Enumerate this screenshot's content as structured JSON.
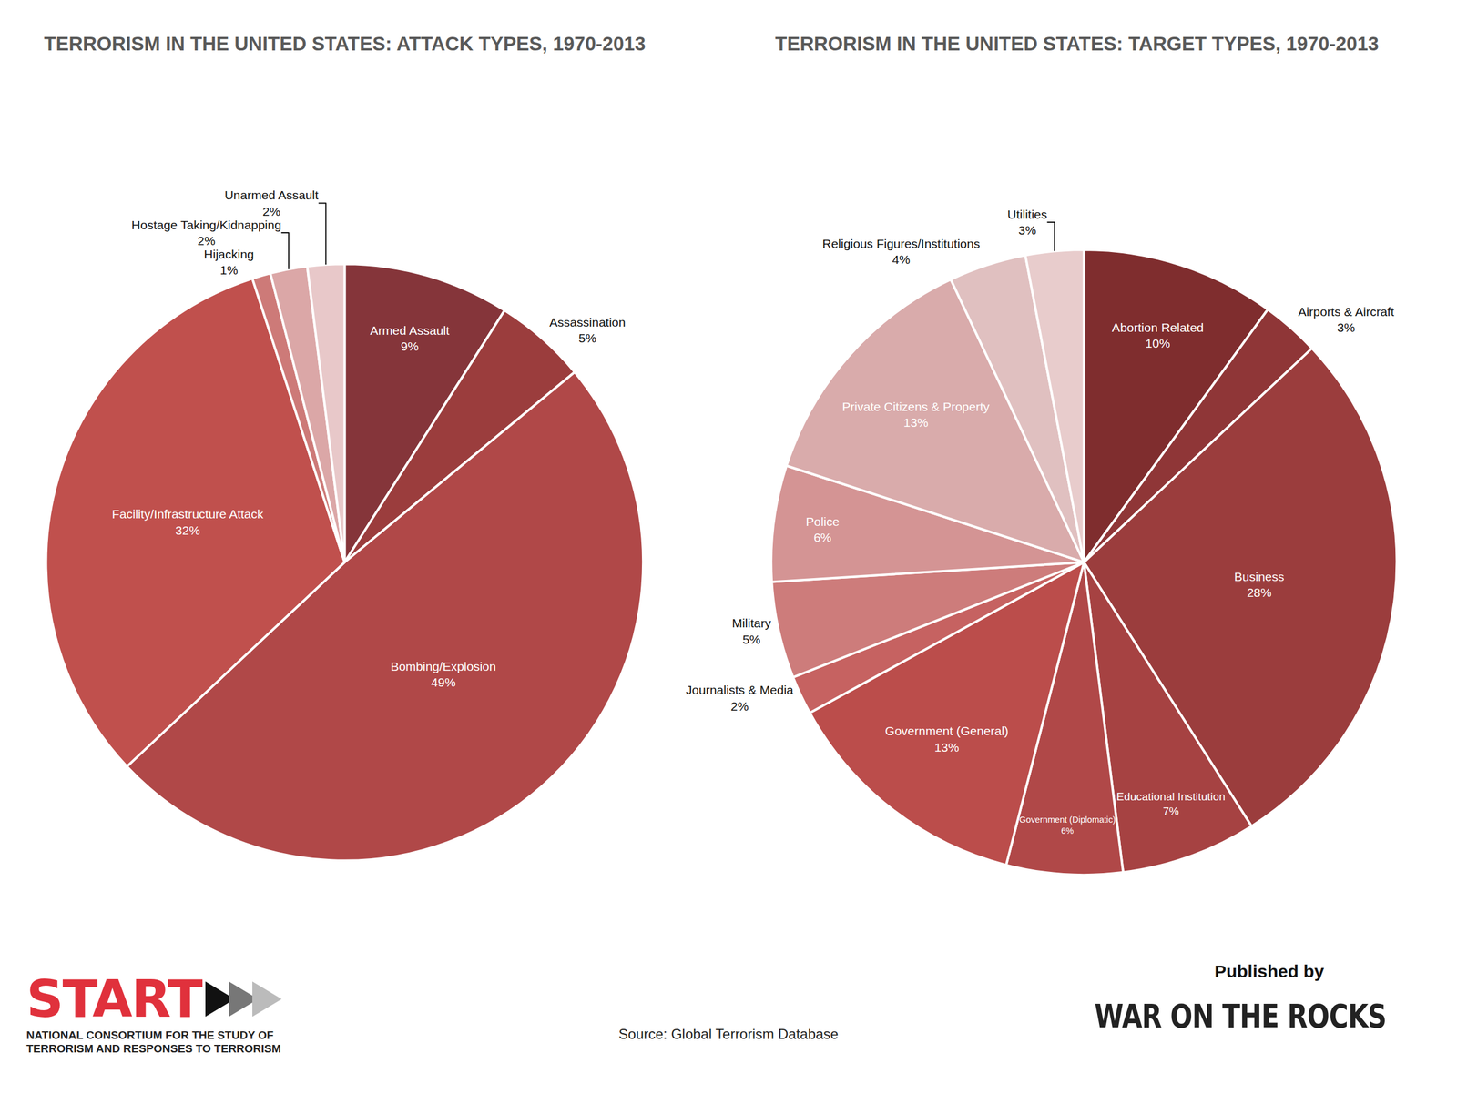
{
  "chart_data": [
    {
      "type": "pie",
      "title": "TERRORISM IN THE UNITED STATES: ATTACK TYPES, 1970-2013",
      "categories": [
        "Armed Assault",
        "Assassination",
        "Bombing/Explosion",
        "Facility/Infrastructure Attack",
        "Hijacking",
        "Hostage Taking/Kidnapping",
        "Unarmed Assault"
      ],
      "values": [
        9,
        5,
        49,
        32,
        1,
        2,
        2
      ],
      "value_labels": [
        "9%",
        "5%",
        "49%",
        "32%",
        "1%",
        "2%",
        "2%"
      ],
      "colors": [
        "#85353a",
        "#9b3d3d",
        "#b04848",
        "#c0504d",
        "#cd7a78",
        "#dba7a7",
        "#e8c8c9"
      ],
      "data_labels": true
    },
    {
      "type": "pie",
      "title": "TERRORISM IN THE UNITED STATES: TARGET TYPES, 1970-2013",
      "categories": [
        "Abortion Related",
        "Airports & Aircraft",
        "Business",
        "Educational Institution",
        "Government (Diplomatic)",
        "Government (General)",
        "Journalists & Media",
        "Military",
        "Police",
        "Private Citizens & Property",
        "Religious Figures/Institutions",
        "Utilities"
      ],
      "values": [
        10,
        3,
        28,
        7,
        6,
        13,
        2,
        5,
        6,
        13,
        4,
        3
      ],
      "value_labels": [
        "10%",
        "3%",
        "28%",
        "7%",
        "6%",
        "13%",
        "2%",
        "5%",
        "6%",
        "13%",
        "4%",
        "3%"
      ],
      "colors": [
        "#7f2d2e",
        "#8f3637",
        "#9b3d3d",
        "#a64242",
        "#b04848",
        "#bb4d4b",
        "#c66261",
        "#cd7c7b",
        "#d49494",
        "#d9abab",
        "#e0c0c0",
        "#e8cccc"
      ],
      "data_labels": true
    }
  ],
  "footer": {
    "logo_left": "START",
    "logo_left_subtitle": "NATIONAL CONSORTIUM FOR THE STUDY OF TERRORISM AND RESPONSES TO TERRORISM",
    "source": "Source: Global Terrorism Database",
    "published_by": "Published by",
    "logo_right": "WAR ON THE ROCKS"
  }
}
